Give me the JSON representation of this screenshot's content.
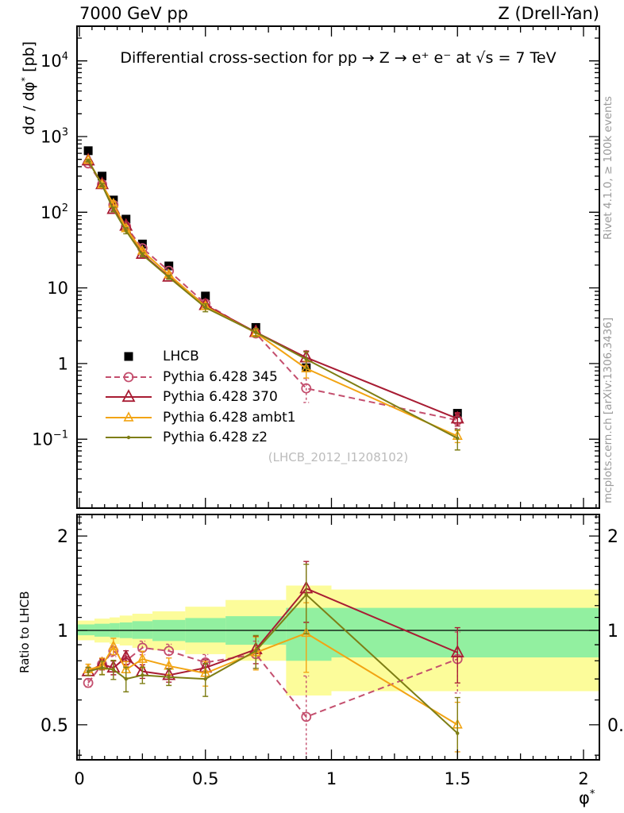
{
  "header": {
    "left": "7000 GeV pp",
    "right": "Z (Drell-Yan)"
  },
  "title": "Differential cross-section for pp → Z → e⁺ e⁻ at √s = 7 TeV",
  "watermark": "(LHCB_2012_I1208102)",
  "side_notes": {
    "top": "Rivet 4.1.0, ≥ 100k events",
    "bottom": "mcplots.cern.ch [arXiv:1306.3436]"
  },
  "axes": {
    "y_main": {
      "pre": "dσ / dφ",
      "sup": "*",
      "post": " [pb]"
    },
    "y_ratio": "Ratio to LHCB",
    "x": {
      "base": "φ",
      "sup": "*"
    }
  },
  "colors": {
    "lhcb": "#000000",
    "p345": "#c44f6e",
    "p370": "#a81c33",
    "ambt1": "#f2a413",
    "z2": "#7e7e15",
    "green_band": "#92f0a0",
    "yellow_band": "#fcfc9a"
  },
  "legend": [
    "LHCB",
    "Pythia 6.428 345",
    "Pythia 6.428 370",
    "Pythia 6.428 ambt1",
    "Pythia 6.428 z2"
  ],
  "chart_data": {
    "type": "line",
    "title": "Differential cross-section for pp → Z → e+ e- at √s = 7 TeV",
    "xlabel": "φ*",
    "x": [
      0.035,
      0.09,
      0.135,
      0.185,
      0.25,
      0.355,
      0.5,
      0.7,
      0.9,
      1.5
    ],
    "xlim": [
      -0.009,
      2.063
    ],
    "xticks": [
      {
        "v": 0,
        "label": "0"
      },
      {
        "v": 0.5,
        "label": "0.5"
      },
      {
        "v": 1,
        "label": "1"
      },
      {
        "v": 1.5,
        "label": "1.5"
      },
      {
        "v": 2,
        "label": "2"
      }
    ],
    "panels": [
      {
        "id": "cross-section",
        "ylabel": "dσ / dφ* [pb]",
        "yscale": "log",
        "ylim": [
          0.0123,
          28800
        ],
        "yticks": [
          {
            "v": 10000,
            "base": "10",
            "exp": "4"
          },
          {
            "v": 1000,
            "base": "10",
            "exp": "3"
          },
          {
            "v": 100,
            "base": "10",
            "exp": "2"
          },
          {
            "v": 10,
            "base": "10",
            "exp": ""
          },
          {
            "v": 1,
            "base": "1",
            "exp": ""
          },
          {
            "v": 0.1,
            "base": "10",
            "exp": "−1"
          }
        ],
        "series": [
          {
            "name": "LHCB",
            "marker": "square",
            "color": "lhcb",
            "line": "none",
            "values": [
              650,
              300,
              145,
              81,
              38,
              19.5,
              7.8,
              3.0,
              0.88,
              0.22
            ],
            "err_rel": [
              0.02,
              0.02,
              0.02,
              0.02,
              0.02,
              0.02,
              0.03,
              0.03,
              0.05,
              0.08
            ]
          },
          {
            "name": "Pythia 6.428 345",
            "marker": "circle",
            "color": "p345",
            "line": "dashed",
            "values": [
              442,
              234,
              125,
              65,
              33.4,
              16.8,
              6.2,
              2.5,
              0.47,
              0.178
            ],
            "err_rel": [
              0.03,
              0.04,
              0.04,
              0.04,
              0.05,
              0.05,
              0.06,
              0.1,
              0.35,
              0.22
            ]
          },
          {
            "name": "Pythia 6.428 370",
            "marker": "triangle",
            "color": "p370",
            "line": "solid",
            "values": [
              481,
              234,
              110,
              66,
              28.1,
              14.0,
              5.9,
              2.6,
              1.2,
              0.187
            ],
            "err_rel": [
              0.03,
              0.04,
              0.05,
              0.05,
              0.05,
              0.05,
              0.06,
              0.1,
              0.22,
              0.2
            ]
          },
          {
            "name": "Pythia 6.428 ambt1",
            "marker": "triangle-small",
            "color": "ambt1",
            "line": "solid",
            "values": [
              488,
              231,
              129,
              61,
              30.8,
              15.0,
              5.7,
              2.55,
              0.86,
              0.11
            ],
            "err_rel": [
              0.04,
              0.06,
              0.06,
              0.06,
              0.06,
              0.06,
              0.09,
              0.12,
              0.25,
              0.18
            ]
          },
          {
            "name": "Pythia 6.428 z2",
            "marker": "dot",
            "color": "z2",
            "line": "solid",
            "values": [
              481,
              228,
              109,
              57,
              27.4,
              13.8,
              5.5,
              2.58,
              1.14,
              0.103
            ],
            "err_rel": [
              0.03,
              0.05,
              0.07,
              0.09,
              0.06,
              0.06,
              0.12,
              0.12,
              0.25,
              0.3
            ]
          }
        ]
      },
      {
        "id": "ratio",
        "ylabel": "Ratio to LHCB",
        "yscale": "log",
        "ylim": [
          0.387,
          2.34
        ],
        "reference_line": 1,
        "yticks": [
          {
            "v": 2,
            "base": "2",
            "exp": ""
          },
          {
            "v": 1,
            "base": "1",
            "exp": ""
          },
          {
            "v": 0.5,
            "base": "0.5",
            "exp": ""
          }
        ],
        "bands": [
          {
            "x0": -0.009,
            "x1": 0.06,
            "yellow": [
              0.93,
              1.075
            ],
            "green": [
              0.965,
              1.045
            ]
          },
          {
            "x0": 0.06,
            "x1": 0.12,
            "yellow": [
              0.915,
              1.09
            ],
            "green": [
              0.955,
              1.05
            ]
          },
          {
            "x0": 0.12,
            "x1": 0.16,
            "yellow": [
              0.905,
              1.1
            ],
            "green": [
              0.95,
              1.055
            ]
          },
          {
            "x0": 0.16,
            "x1": 0.21,
            "yellow": [
              0.895,
              1.115
            ],
            "green": [
              0.945,
              1.06
            ]
          },
          {
            "x0": 0.21,
            "x1": 0.29,
            "yellow": [
              0.88,
              1.13
            ],
            "green": [
              0.94,
              1.07
            ]
          },
          {
            "x0": 0.29,
            "x1": 0.42,
            "yellow": [
              0.865,
              1.15
            ],
            "green": [
              0.925,
              1.08
            ]
          },
          {
            "x0": 0.42,
            "x1": 0.58,
            "yellow": [
              0.84,
              1.19
            ],
            "green": [
              0.915,
              1.095
            ]
          },
          {
            "x0": 0.58,
            "x1": 0.82,
            "yellow": [
              0.8,
              1.25
            ],
            "green": [
              0.9,
              1.11
            ]
          },
          {
            "x0": 0.82,
            "x1": 1.0,
            "yellow": [
              0.62,
              1.39
            ],
            "green": [
              0.8,
              1.18
            ]
          },
          {
            "x0": 1.0,
            "x1": 2.063,
            "yellow": [
              0.64,
              1.35
            ],
            "green": [
              0.82,
              1.18
            ]
          }
        ],
        "series": [
          {
            "name": "Pythia 6.428 345",
            "marker": "circle",
            "color": "p345",
            "line": "dashed",
            "values": [
              0.68,
              0.78,
              0.86,
              0.8,
              0.88,
              0.86,
              0.79,
              0.84,
              0.53,
              0.81
            ],
            "err_rel": [
              0.03,
              0.04,
              0.04,
              0.04,
              0.05,
              0.05,
              0.06,
              0.1,
              0.35,
              0.22
            ]
          },
          {
            "name": "Pythia 6.428 370",
            "marker": "triangle",
            "color": "p370",
            "line": "solid",
            "values": [
              0.74,
              0.78,
              0.76,
              0.82,
              0.74,
              0.72,
              0.76,
              0.87,
              1.36,
              0.85
            ],
            "err_rel": [
              0.03,
              0.04,
              0.05,
              0.05,
              0.05,
              0.05,
              0.06,
              0.1,
              0.22,
              0.2
            ]
          },
          {
            "name": "Pythia 6.428 ambt1",
            "marker": "triangle-small",
            "color": "ambt1",
            "line": "solid",
            "values": [
              0.75,
              0.77,
              0.89,
              0.75,
              0.81,
              0.77,
              0.73,
              0.85,
              0.98,
              0.5
            ],
            "err_rel": [
              0.04,
              0.06,
              0.06,
              0.06,
              0.06,
              0.06,
              0.09,
              0.12,
              0.25,
              0.18
            ]
          },
          {
            "name": "Pythia 6.428 z2",
            "marker": "dot",
            "color": "z2",
            "line": "solid",
            "values": [
              0.74,
              0.76,
              0.75,
              0.7,
              0.72,
              0.71,
              0.7,
              0.86,
              1.3,
              0.47
            ],
            "err_rel": [
              0.03,
              0.05,
              0.07,
              0.09,
              0.06,
              0.06,
              0.12,
              0.12,
              0.25,
              0.3
            ]
          }
        ]
      }
    ]
  }
}
